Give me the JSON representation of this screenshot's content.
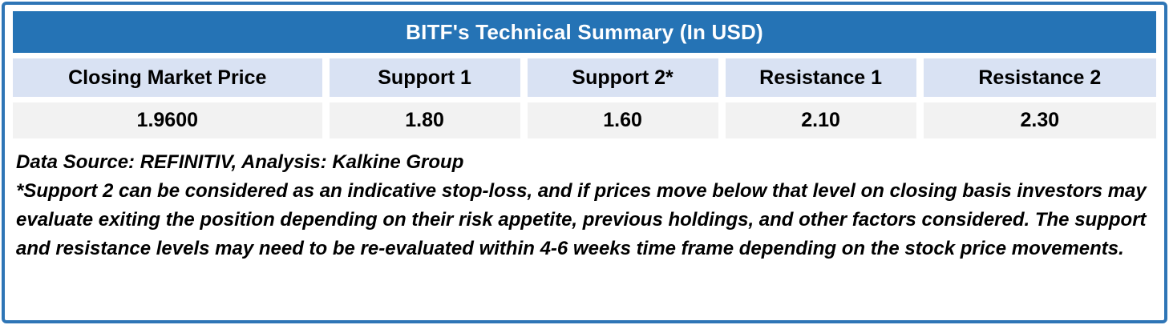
{
  "table": {
    "title": "BITF's Technical Summary (In USD)",
    "columns": [
      {
        "label": "Closing Market Price",
        "value": "1.9600"
      },
      {
        "label": "Support 1",
        "value": "1.80"
      },
      {
        "label": "Support 2*",
        "value": "1.60"
      },
      {
        "label": "Resistance 1",
        "value": "2.10"
      },
      {
        "label": "Resistance 2",
        "value": "2.30"
      }
    ]
  },
  "notes": {
    "source": "Data Source: REFINITIV, Analysis: Kalkine Group",
    "disclaimer": "*Support 2 can be considered as an indicative stop-loss, and if prices move below that level on closing basis investors may evaluate exiting the position depending on their risk appetite, previous holdings, and other factors considered. The support and resistance levels may need to be re-evaluated within 4-6 weeks time frame depending on the stock price movements."
  },
  "colors": {
    "title_bg": "#2573B5",
    "header_bg": "#D9E2F3",
    "value_bg": "#F2F2F2",
    "border": "#2E75B6"
  }
}
